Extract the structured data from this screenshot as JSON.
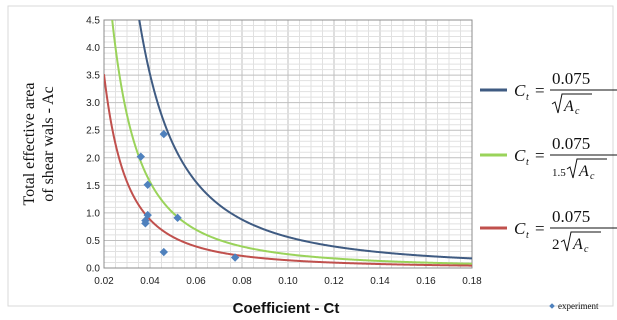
{
  "chart_data": {
    "type": "line",
    "xlabel": "Coefficient - Ct",
    "ylabel_lines": [
      "Total effective area",
      "of shear wals - Ac"
    ],
    "xlim": [
      0.02,
      0.18
    ],
    "ylim": [
      0,
      4.5
    ],
    "x_ticks": [
      "0.02",
      "0.04",
      "0.06",
      "0.08",
      "0.10",
      "0.12",
      "0.14",
      "0.16",
      "0.18"
    ],
    "y_ticks": [
      "0.0",
      "0.5",
      "1.0",
      "1.5",
      "2.0",
      "2.5",
      "3.0",
      "3.5",
      "4.0",
      "4.5"
    ],
    "grid": true,
    "legend_position": "right",
    "series": [
      {
        "color": "#3f5b82",
        "formula": {
          "lhs": "C",
          "sub": "t",
          "numerator": "0.075",
          "coef": "",
          "den_var": "A",
          "den_sub": "c"
        },
        "k": 1.0
      },
      {
        "color": "#9ad35a",
        "formula": {
          "lhs": "C",
          "sub": "t",
          "numerator": "0.075",
          "coef": "1.5",
          "den_var": "A",
          "den_sub": "c"
        },
        "k": 1.5
      },
      {
        "color": "#c0504d",
        "formula": {
          "lhs": "C",
          "sub": "t",
          "numerator": "0.075",
          "coef": "2",
          "den_var": "A",
          "den_sub": "c"
        },
        "k": 2.0
      }
    ],
    "scatter": {
      "name": "experiment",
      "color": "#4f81bd",
      "points": [
        [
          0.036,
          2.02
        ],
        [
          0.046,
          2.43
        ],
        [
          0.039,
          1.51
        ],
        [
          0.039,
          0.96
        ],
        [
          0.038,
          0.86
        ],
        [
          0.038,
          0.81
        ],
        [
          0.052,
          0.91
        ],
        [
          0.046,
          0.29
        ],
        [
          0.077,
          0.19
        ]
      ]
    }
  }
}
